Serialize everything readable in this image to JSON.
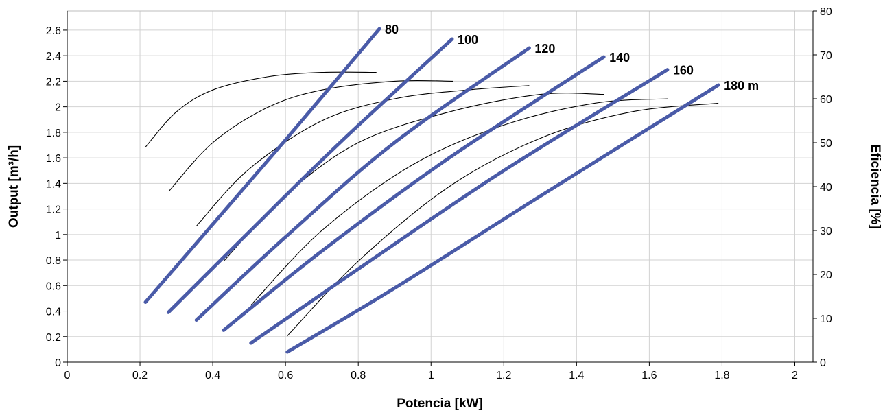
{
  "chart_data": {
    "type": "line",
    "title": "",
    "xlabel": "Potencia [kW]",
    "ylabel": "Output [m³/h]",
    "y2label": "Eficiencia [%]",
    "xlim": [
      0,
      2.05
    ],
    "ylim": [
      0,
      2.75
    ],
    "y2lim": [
      0,
      80
    ],
    "x_ticks": [
      {
        "value": 0,
        "label": "0"
      },
      {
        "value": 0.2,
        "label": "0.2"
      },
      {
        "value": 0.4,
        "label": "0.4"
      },
      {
        "value": 0.6,
        "label": "0.6"
      },
      {
        "value": 0.8,
        "label": "0.8"
      },
      {
        "value": 1,
        "label": "1"
      },
      {
        "value": 1.2,
        "label": "1.2"
      },
      {
        "value": 1.4,
        "label": "1.4"
      },
      {
        "value": 1.6,
        "label": "1.6"
      },
      {
        "value": 1.8,
        "label": "1.8"
      },
      {
        "value": 2,
        "label": "2"
      }
    ],
    "y_ticks": [
      {
        "value": 0,
        "label": "0"
      },
      {
        "value": 0.2,
        "label": "0.2"
      },
      {
        "value": 0.4,
        "label": "0.4"
      },
      {
        "value": 0.6,
        "label": "0.6"
      },
      {
        "value": 0.8,
        "label": "0.8"
      },
      {
        "value": 1,
        "label": "1"
      },
      {
        "value": 1.2,
        "label": "1.2"
      },
      {
        "value": 1.4,
        "label": "1.4"
      },
      {
        "value": 1.6,
        "label": "1.6"
      },
      {
        "value": 1.8,
        "label": "1.8"
      },
      {
        "value": 2,
        "label": "2"
      },
      {
        "value": 2.2,
        "label": "2.2"
      },
      {
        "value": 2.4,
        "label": "2.4"
      },
      {
        "value": 2.6,
        "label": "2.6"
      }
    ],
    "y2_ticks": [
      {
        "value": 0,
        "label": "0"
      },
      {
        "value": 10,
        "label": "10"
      },
      {
        "value": 20,
        "label": "20"
      },
      {
        "value": 30,
        "label": "30"
      },
      {
        "value": 40,
        "label": "40"
      },
      {
        "value": 50,
        "label": "50"
      },
      {
        "value": 60,
        "label": "60"
      },
      {
        "value": 70,
        "label": "70"
      },
      {
        "value": 80,
        "label": "80"
      }
    ],
    "grid": true,
    "colors": {
      "output": "#4a5ba8",
      "efficiency": "#000000",
      "grid": "#d2d2d2",
      "axis": "#000000"
    },
    "output_series": [
      {
        "label": "80",
        "x": [
          0.215,
          0.4,
          0.6,
          0.858
        ],
        "y": [
          0.47,
          1.08,
          1.74,
          2.61
        ]
      },
      {
        "label": "100",
        "x": [
          0.278,
          0.5,
          0.75,
          1.058
        ],
        "y": [
          0.39,
          1.02,
          1.72,
          2.53
        ]
      },
      {
        "label": "120",
        "x": [
          0.355,
          0.6,
          0.9,
          1.27
        ],
        "y": [
          0.33,
          0.98,
          1.72,
          2.46
        ]
      },
      {
        "label": "140",
        "x": [
          0.43,
          0.7,
          1.05,
          1.475
        ],
        "y": [
          0.25,
          0.87,
          1.6,
          2.39
        ]
      },
      {
        "label": "160",
        "x": [
          0.505,
          0.8,
          1.2,
          1.65
        ],
        "y": [
          0.15,
          0.73,
          1.5,
          2.29
        ]
      },
      {
        "label": "180 m",
        "x": [
          0.605,
          0.9,
          1.3,
          1.79
        ],
        "y": [
          0.08,
          0.58,
          1.3,
          2.17
        ]
      }
    ],
    "efficiency_series": [
      {
        "x": [
          0.215,
          0.3,
          0.4,
          0.55,
          0.7,
          0.85
        ],
        "y": [
          49,
          57,
          62,
          65,
          66,
          66
        ]
      },
      {
        "x": [
          0.28,
          0.4,
          0.55,
          0.7,
          0.9,
          1.06
        ],
        "y": [
          39,
          50,
          58,
          62,
          64,
          64
        ]
      },
      {
        "x": [
          0.355,
          0.5,
          0.7,
          0.9,
          1.1,
          1.27
        ],
        "y": [
          31,
          44,
          55,
          60,
          62,
          63
        ]
      },
      {
        "x": [
          0.43,
          0.6,
          0.8,
          1.05,
          1.3,
          1.475
        ],
        "y": [
          23,
          38,
          50,
          57,
          61,
          61
        ]
      },
      {
        "x": [
          0.505,
          0.7,
          0.95,
          1.2,
          1.45,
          1.65
        ],
        "y": [
          13,
          30,
          45,
          54,
          59,
          60
        ]
      },
      {
        "x": [
          0.605,
          0.8,
          1.05,
          1.3,
          1.55,
          1.79
        ],
        "y": [
          6,
          23,
          40,
          51,
          57,
          59
        ]
      }
    ]
  }
}
